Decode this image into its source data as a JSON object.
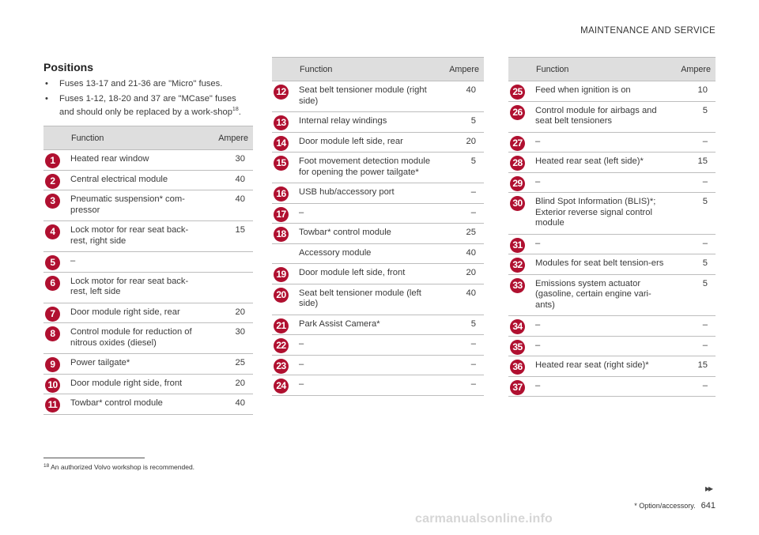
{
  "header": {
    "section": "MAINTENANCE AND SERVICE"
  },
  "positions": {
    "title": "Positions",
    "bullets": [
      {
        "text": "Fuses 13-17 and 21-36 are \"Micro\" fuses."
      },
      {
        "text": "Fuses 1-12, 18-20 and 37 are \"MCase\" fuses and should only be replaced by a work-shop",
        "sup": "18",
        "end": "."
      }
    ]
  },
  "table_headers": {
    "function": "Function",
    "ampere": "Ampere"
  },
  "table1": [
    {
      "num": "1",
      "function": "Heated rear window",
      "ampere": "30"
    },
    {
      "num": "2",
      "function": "Central electrical module",
      "ampere": "40"
    },
    {
      "num": "3",
      "function": "Pneumatic suspension* com-pressor",
      "ampere": "40"
    },
    {
      "num": "4",
      "function": "Lock motor for rear seat back-rest, right side",
      "ampere": "15"
    },
    {
      "num": "5",
      "function": "–",
      "ampere": ""
    },
    {
      "num": "6",
      "function": "Lock motor for rear seat back-rest, left side",
      "ampere": ""
    },
    {
      "num": "7",
      "function": "Door module right side, rear",
      "ampere": "20"
    },
    {
      "num": "8",
      "function": "Control module for reduction of nitrous oxides (diesel)",
      "ampere": "30"
    },
    {
      "num": "9",
      "function": "Power tailgate*",
      "ampere": "25"
    },
    {
      "num": "10",
      "function": "Door module right side, front",
      "ampere": "20"
    },
    {
      "num": "11",
      "function": "Towbar* control module",
      "ampere": "40"
    }
  ],
  "table2": [
    {
      "num": "12",
      "function": "Seat belt tensioner module (right side)",
      "ampere": "40"
    },
    {
      "num": "13",
      "function": "Internal relay windings",
      "ampere": "5"
    },
    {
      "num": "14",
      "function": "Door module left side, rear",
      "ampere": "20"
    },
    {
      "num": "15",
      "function": "Foot movement detection module for opening the power tailgate*",
      "ampere": "5"
    },
    {
      "num": "16",
      "function": "USB hub/accessory port",
      "ampere": "–"
    },
    {
      "num": "17",
      "function": "–",
      "ampere": "–"
    },
    {
      "num": "18",
      "function": "Towbar* control module",
      "ampere": "25"
    },
    {
      "num": "",
      "function": "Accessory module",
      "ampere": "40"
    },
    {
      "num": "19",
      "function": "Door module left side, front",
      "ampere": "20"
    },
    {
      "num": "20",
      "function": "Seat belt tensioner module (left side)",
      "ampere": "40"
    },
    {
      "num": "21",
      "function": "Park Assist Camera*",
      "ampere": "5"
    },
    {
      "num": "22",
      "function": "–",
      "ampere": "–"
    },
    {
      "num": "23",
      "function": "–",
      "ampere": "–"
    },
    {
      "num": "24",
      "function": "–",
      "ampere": "–"
    }
  ],
  "table3": [
    {
      "num": "25",
      "function": "Feed when ignition is on",
      "ampere": "10"
    },
    {
      "num": "26",
      "function": "Control module for airbags and seat belt tensioners",
      "ampere": "5"
    },
    {
      "num": "27",
      "function": "–",
      "ampere": "–"
    },
    {
      "num": "28",
      "function": "Heated rear seat (left side)*",
      "ampere": "15"
    },
    {
      "num": "29",
      "function": "–",
      "ampere": "–"
    },
    {
      "num": "30",
      "function": "Blind Spot Information (BLIS)*; Exterior reverse signal control module",
      "ampere": "5"
    },
    {
      "num": "31",
      "function": "–",
      "ampere": "–"
    },
    {
      "num": "32",
      "function": "Modules for seat belt tension-ers",
      "ampere": "5"
    },
    {
      "num": "33",
      "function": "Emissions system actuator (gasoline, certain engine vari-ants)",
      "ampere": "5"
    },
    {
      "num": "34",
      "function": "–",
      "ampere": "–"
    },
    {
      "num": "35",
      "function": "–",
      "ampere": "–"
    },
    {
      "num": "36",
      "function": "Heated rear seat (right side)*",
      "ampere": "15"
    },
    {
      "num": "37",
      "function": "–",
      "ampere": "–"
    }
  ],
  "footnote": {
    "num": "18",
    "text": "An authorized Volvo workshop is recommended."
  },
  "footer": {
    "option_note": "* Option/accessory.",
    "page": "641",
    "next_glyph": "▸▸"
  },
  "watermark": "carmanualsonline.info",
  "colors": {
    "badge": "#b01030",
    "header_bg": "#dedede"
  }
}
